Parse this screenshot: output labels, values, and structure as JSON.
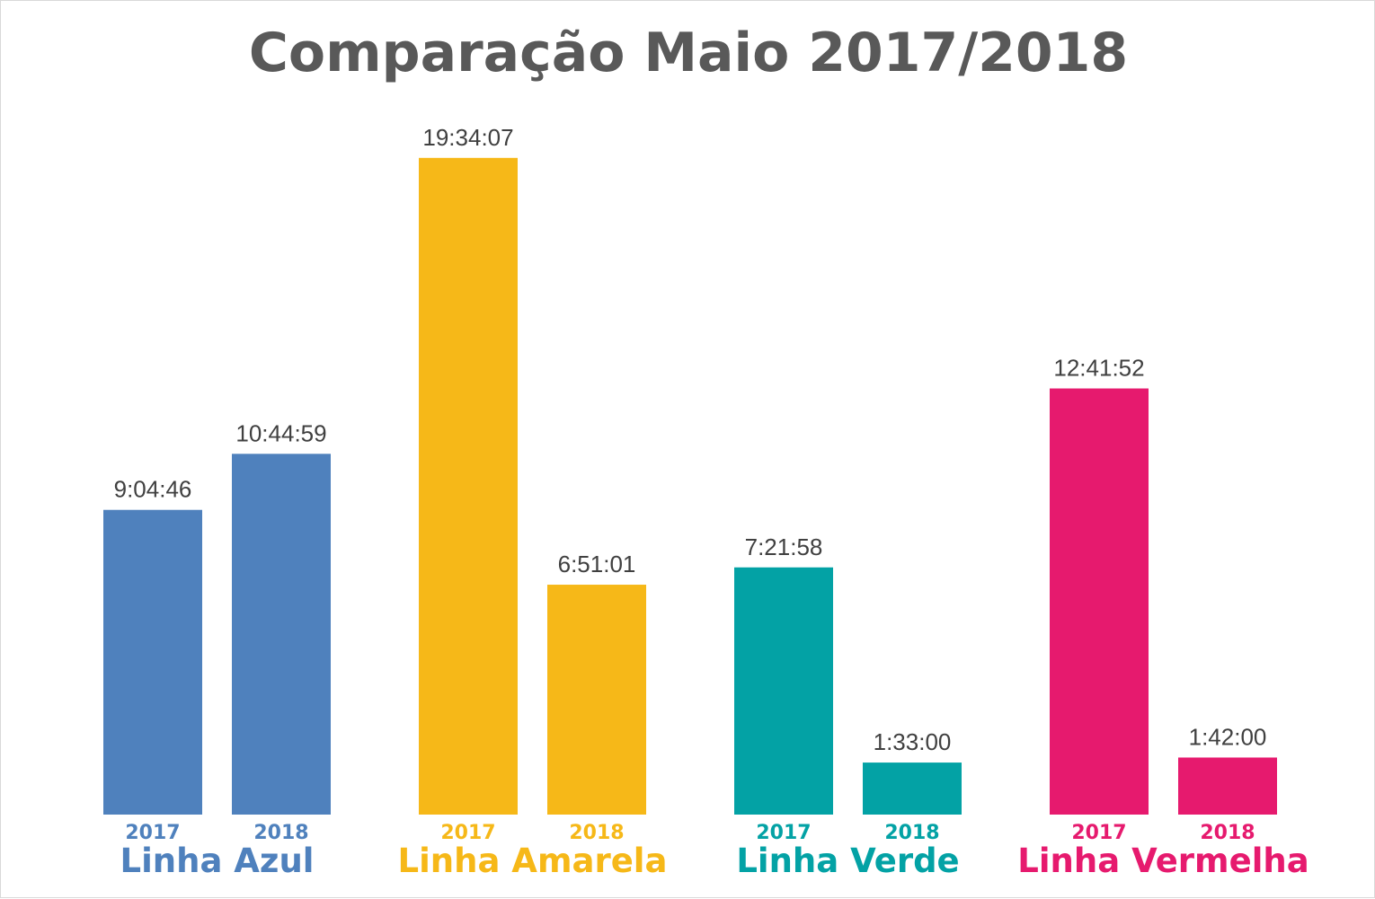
{
  "chart_data": {
    "type": "bar",
    "title": "Comparação Maio 2017/2018",
    "xlabel": "",
    "ylabel": "",
    "grid": false,
    "legend": "none",
    "ylim_hours": [
      0,
      20.5
    ],
    "groups": [
      {
        "name": "Linha Azul",
        "color": "#4f81bd",
        "bars": [
          {
            "year": "2017",
            "label": "9:04:46",
            "value_hours": 9.0794
          },
          {
            "year": "2018",
            "label": "10:44:59",
            "value_hours": 10.7497
          }
        ]
      },
      {
        "name": "Linha Amarela",
        "color": "#f6b818",
        "bars": [
          {
            "year": "2017",
            "label": "19:34:07",
            "value_hours": 19.5686
          },
          {
            "year": "2018",
            "label": "6:51:01",
            "value_hours": 6.8503
          }
        ]
      },
      {
        "name": "Linha Verde",
        "color": "#03a2a5",
        "bars": [
          {
            "year": "2017",
            "label": "7:21:58",
            "value_hours": 7.3661
          },
          {
            "year": "2018",
            "label": "1:33:00",
            "value_hours": 1.55
          }
        ]
      },
      {
        "name": "Linha Vermelha",
        "color": "#e61a6e",
        "bars": [
          {
            "year": "2017",
            "label": "12:41:52",
            "value_hours": 12.6978
          },
          {
            "year": "2018",
            "label": "1:42:00",
            "value_hours": 1.7
          }
        ]
      }
    ]
  }
}
